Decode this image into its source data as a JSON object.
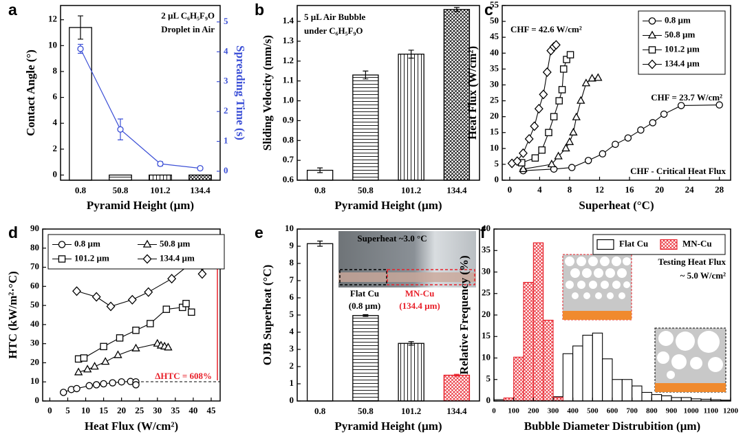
{
  "chart_data": [
    {
      "type": "bar",
      "label": "a",
      "xlabel": "Pyramid Height (µm)",
      "ylabel": "Contact Angle (°)",
      "y2label": "Spreading Time (s)",
      "categories": [
        "0.8",
        "50.8",
        "101.2",
        "134.4"
      ],
      "values": [
        11.4,
        0,
        0,
        0
      ],
      "errors": [
        0.9,
        null,
        null,
        null
      ],
      "hatch": [
        "none",
        "horizontal",
        "vertical",
        "cross"
      ],
      "color": "#000000",
      "ylim": [
        -0.4,
        13.1
      ],
      "yticks": [
        0,
        2,
        4,
        6,
        8,
        10,
        12
      ],
      "y2lim": [
        -0.3,
        5.55
      ],
      "y2ticks": [
        0,
        1,
        2,
        3,
        4,
        5
      ],
      "y2color": "#3b4fd6",
      "series": [
        {
          "axis": "y2",
          "color": "#3b4fd6",
          "values": [
            4.1,
            1.4,
            0.25,
            0.1
          ],
          "errors": [
            0.15,
            0.35,
            0.07,
            0.05
          ]
        }
      ],
      "annotations": [
        {
          "text": "2 µL C₆H₅F₉O"
        },
        {
          "text": "Droplet in Air"
        }
      ]
    },
    {
      "type": "bar",
      "label": "b",
      "xlabel": "Pyramid Height (µm)",
      "ylabel": "Sliding Velocity (mm/s)",
      "categories": [
        "0.8",
        "50.8",
        "101.2",
        "134.4"
      ],
      "values": [
        0.65,
        1.13,
        1.235,
        1.46
      ],
      "errors": [
        0.012,
        0.02,
        0.02,
        0.01
      ],
      "hatch": [
        "none",
        "horizontal",
        "vertical",
        "cross"
      ],
      "color": "#000000",
      "ylim": [
        0.6,
        1.48
      ],
      "yticks": [
        0.6,
        0.7,
        0.8,
        0.9,
        {
          "value": 1,
          "label": "1.0"
        },
        1.1,
        1.2,
        1.3,
        1.4
      ],
      "annotations": [
        {
          "text": "5 µL Air Bubble"
        },
        {
          "text": "under C₆H₅F₉O"
        }
      ]
    },
    {
      "type": "line",
      "label": "c",
      "xlabel": "Superheat (°C)",
      "ylabel": "Heat Flux (W/cm²)",
      "xlim": [
        -1,
        29.5
      ],
      "xticks": [
        0,
        4,
        8,
        12,
        16,
        20,
        24,
        28
      ],
      "ylim": [
        0,
        55
      ],
      "yticks": [
        0,
        5,
        10,
        15,
        20,
        25,
        30,
        35,
        40,
        45,
        50,
        55
      ],
      "legend": "upper right",
      "series": [
        {
          "name": "0.8 µm",
          "marker": "circle",
          "color": "#000000",
          "x": [
            1.8,
            5.9,
            8.3,
            10.5,
            12.4,
            14.1,
            15.8,
            17.5,
            19.1,
            20.6,
            22.9,
            28
          ],
          "values": [
            3,
            3.5,
            4,
            6.2,
            8.3,
            11.3,
            13.3,
            15.8,
            18.1,
            20.8,
            23.5,
            23.7
          ]
        },
        {
          "name": "50.8 µm",
          "marker": "triangle",
          "color": "#000000",
          "x": [
            1.8,
            5.6,
            6.5,
            7.5,
            8.0,
            8.5,
            8.9,
            9.5,
            10.2,
            11,
            11.8
          ],
          "values": [
            3.5,
            5,
            7.5,
            10,
            12,
            15,
            19.8,
            25,
            30.5,
            32,
            32.2
          ]
        },
        {
          "name": "101.2 µm",
          "marker": "square",
          "color": "#000000",
          "x": [
            1.6,
            3.4,
            4.3,
            5.2,
            5.9,
            6.6,
            7.0,
            7.2,
            7.6,
            8.1
          ],
          "values": [
            5.5,
            7,
            9.5,
            15,
            20,
            25,
            28.5,
            35,
            38,
            39.5
          ]
        },
        {
          "name": "134.4 µm",
          "marker": "diamond",
          "color": "#000000",
          "x": [
            0.3,
            1.0,
            1.8,
            2.6,
            3.3,
            3.9,
            4.5,
            5.0,
            5.5,
            5.9,
            6.2
          ],
          "values": [
            5.3,
            6,
            8.5,
            13,
            17,
            22.5,
            27,
            34,
            40.8,
            42,
            42.6
          ]
        }
      ],
      "annotations": [
        {
          "text": "CHF = 42.6 W/cm²"
        },
        {
          "text": "CHF = 23.7 W/cm²"
        },
        {
          "text": "CHF - Critical Heat Flux"
        }
      ]
    },
    {
      "type": "line",
      "label": "d",
      "xlabel": "Heat Flux (W/cm²)",
      "ylabel": "HTC (kW/m²·°C)",
      "xlim": [
        -2,
        47.5
      ],
      "xticks": [
        0,
        5,
        10,
        15,
        20,
        25,
        30,
        35,
        40,
        45
      ],
      "ylim": [
        0,
        90
      ],
      "yticks": [
        0,
        10,
        20,
        30,
        40,
        50,
        60,
        70,
        80,
        90
      ],
      "legend": "upper left",
      "series": [
        {
          "name": "0.8 µm",
          "marker": "circle",
          "color": "#000000",
          "x": [
            3.8,
            6,
            7.5,
            11,
            13,
            15,
            17.5,
            20,
            22.5,
            24,
            24
          ],
          "values": [
            4.5,
            6,
            6.5,
            8,
            8.5,
            9,
            9.5,
            10,
            10.2,
            10,
            8.5
          ]
        },
        {
          "name": "50.8 µm",
          "marker": "triangle",
          "color": "#000000",
          "x": [
            8,
            10.5,
            12.5,
            15.5,
            19,
            24,
            30,
            31,
            32,
            33
          ],
          "values": [
            15,
            16.5,
            18,
            20.5,
            24,
            27.5,
            30,
            29,
            28.5,
            28
          ]
        },
        {
          "name": "101.2 µm",
          "marker": "square",
          "color": "#000000",
          "x": [
            8,
            9.5,
            15,
            19.5,
            24,
            28,
            32.5,
            37,
            38,
            39.5
          ],
          "values": [
            22,
            22.5,
            28.5,
            33,
            37,
            40.5,
            48,
            49,
            51,
            46.5
          ]
        },
        {
          "name": "134.4 µm",
          "marker": "diamond",
          "color": "#000000",
          "x": [
            7.5,
            13,
            17,
            23,
            27.5,
            34,
            40,
            42,
            42.5,
            43
          ],
          "values": [
            57.5,
            54.5,
            49.5,
            53,
            57,
            64,
            73,
            72,
            66.5,
            72
          ]
        }
      ],
      "annotations": [
        {
          "text": "ΔHTC = 608%",
          "color": "#e8202a"
        }
      ]
    },
    {
      "type": "bar",
      "label": "e",
      "xlabel": "Pyramid Height (µm)",
      "ylabel": "OJB Superheat (°C)",
      "categories": [
        "0.8",
        "50.8",
        "101.2",
        "134.4"
      ],
      "values": [
        9.15,
        4.97,
        3.35,
        1.5
      ],
      "errors": [
        0.15,
        0.05,
        0.1,
        0.05
      ],
      "hatch": [
        "none",
        "horizontal",
        "vertical",
        "cross"
      ],
      "colors": [
        "#000000",
        "#000000",
        "#000000",
        "#e8202a"
      ],
      "ylim": [
        0,
        10
      ],
      "yticks": [
        0,
        1,
        2,
        3,
        4,
        5,
        6,
        7,
        8,
        9,
        10
      ],
      "annotations": [
        {
          "text": "Superheat ~3.0 °C"
        },
        {
          "text": "Flat Cu"
        },
        {
          "text": "(0.8 µm)"
        },
        {
          "text": "MN-Cu",
          "color": "#e8202a"
        },
        {
          "text": "(134.4 µm)",
          "color": "#e8202a"
        }
      ]
    },
    {
      "type": "histogram",
      "label": "f",
      "xlabel": "Bubble Diameter Distrubition (µm)",
      "ylabel": "Relative Frequency (%)",
      "bins": [
        0,
        50,
        100,
        150,
        200,
        250,
        300,
        350,
        400,
        450,
        500,
        550,
        600,
        650,
        700,
        750,
        800,
        850,
        900,
        950,
        1000,
        1050,
        1100,
        1150,
        1200
      ],
      "xlim": [
        0,
        1200
      ],
      "xticks": [
        0,
        100,
        200,
        300,
        400,
        500,
        600,
        700,
        800,
        900,
        1000,
        1100,
        1200
      ],
      "ylim": [
        0,
        40
      ],
      "yticks": [
        0,
        5,
        10,
        15,
        20,
        25,
        30,
        35,
        40
      ],
      "legend": "upper right",
      "series": [
        {
          "name": "Flat Cu",
          "color": "#000000",
          "hatch": "none",
          "values": [
            0.3,
            0.3,
            0.5,
            1.0,
            2.0,
            5.6,
            1.0,
            11.0,
            12.8,
            15.3,
            15.8,
            9.8,
            5.0,
            5.0,
            3.5,
            2.0,
            1.5,
            1.2,
            0.8,
            0.8,
            0.5,
            0.4,
            0.3,
            0.2
          ]
        },
        {
          "name": "MN-Cu",
          "color": "#e8202a",
          "hatch": "cross",
          "values": [
            0,
            0.7,
            10.2,
            27.6,
            36.8,
            18.8,
            0.8,
            0,
            0,
            0,
            0,
            0,
            0,
            0,
            0,
            0,
            0,
            0,
            0,
            0,
            0,
            0,
            0,
            0
          ]
        }
      ],
      "annotations": [
        {
          "text": "Testing Heat Flux"
        },
        {
          "text": "~ 5.0 W/cm²"
        }
      ]
    }
  ]
}
